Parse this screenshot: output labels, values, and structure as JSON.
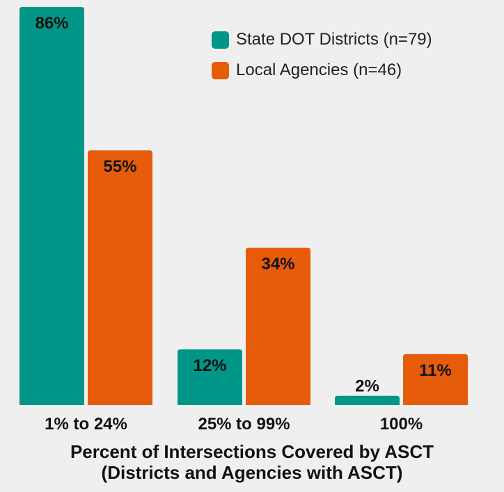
{
  "chart_data": {
    "type": "bar",
    "categories": [
      "1% to 24%",
      "25% to 99%",
      "100%"
    ],
    "series": [
      {
        "name": "State DOT Districts (n=79)",
        "values": [
          86,
          12,
          2
        ],
        "labels": [
          "86%",
          "12%",
          "2%"
        ],
        "color": "#009688"
      },
      {
        "name": "Local Agencies (n=46)",
        "values": [
          55,
          34,
          11
        ],
        "labels": [
          "55%",
          "34%",
          "11%"
        ],
        "color": "#e65c0a"
      }
    ],
    "xlabel": "Percent of Intersections Covered by ASCT",
    "xlabel_sub": "(Districts and Agencies with ASCT)",
    "ylabel": "",
    "ylim": [
      0,
      86
    ],
    "grid": false,
    "legend_position": "top-right"
  }
}
